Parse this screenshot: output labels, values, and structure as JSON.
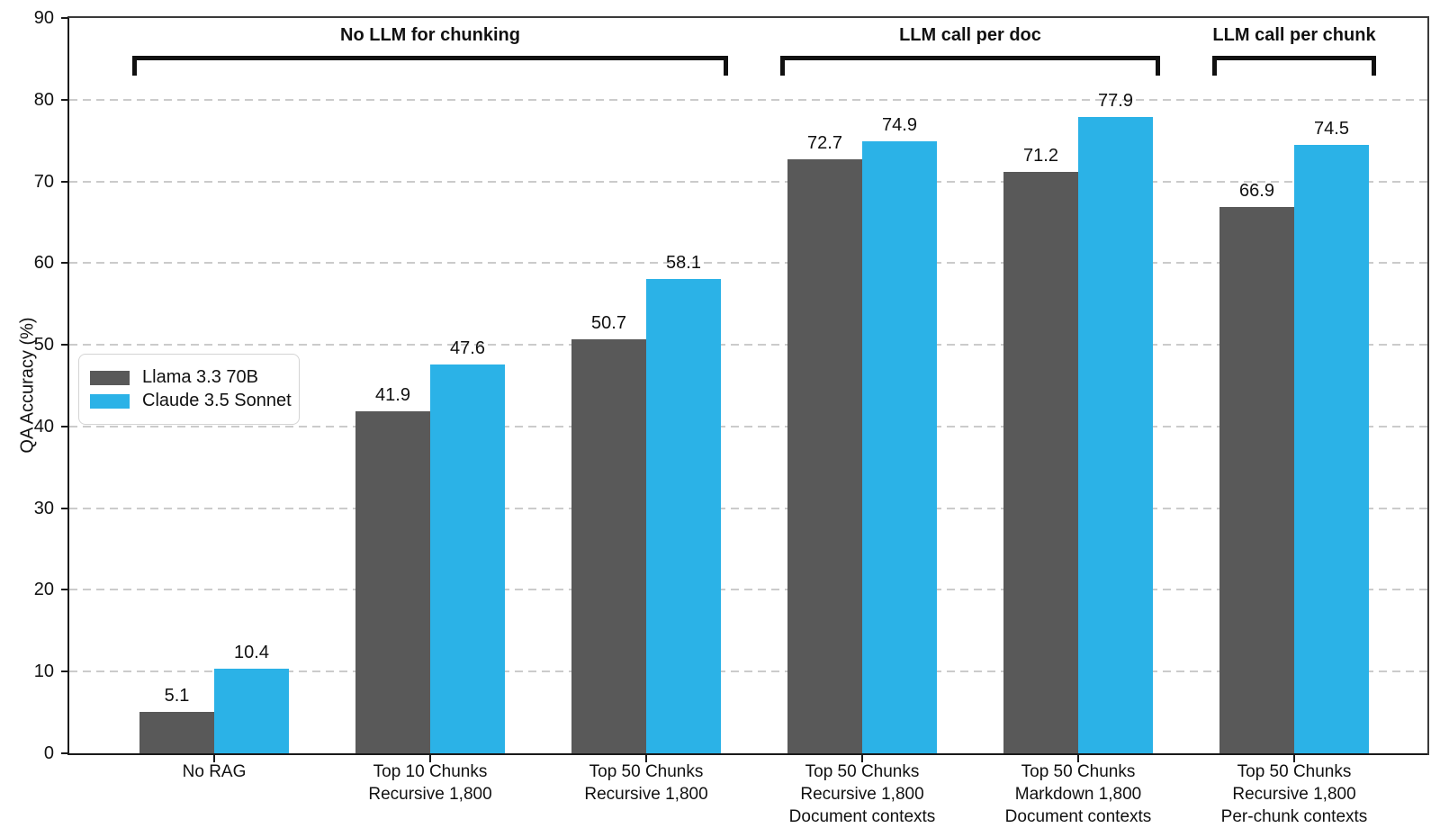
{
  "chart_data": {
    "type": "bar",
    "title": "",
    "xlabel": "",
    "ylabel": "QA Accuracy (%)",
    "ylim": [
      0,
      90
    ],
    "yticks": [
      0,
      10,
      20,
      30,
      40,
      50,
      60,
      70,
      80,
      90
    ],
    "grid": "horizontal dashed",
    "legend_position": "upper left inside plot",
    "categories": [
      [
        "No RAG"
      ],
      [
        "Top 10 Chunks",
        "Recursive 1,800"
      ],
      [
        "Top 50 Chunks",
        "Recursive 1,800"
      ],
      [
        "Top 50 Chunks",
        "Recursive 1,800",
        "Document contexts"
      ],
      [
        "Top 50 Chunks",
        "Markdown 1,800",
        "Document contexts"
      ],
      [
        "Top 50 Chunks",
        "Recursive 1,800",
        "Per-chunk contexts"
      ]
    ],
    "series": [
      {
        "name": "Llama 3.3 70B",
        "color": "#595959",
        "values": [
          5.1,
          41.9,
          50.7,
          72.7,
          71.2,
          66.9
        ]
      },
      {
        "name": "Claude 3.5 Sonnet",
        "color": "#2bb2e7",
        "values": [
          10.4,
          47.6,
          58.1,
          74.9,
          77.9,
          74.5
        ]
      }
    ],
    "bar_value_labels": [
      "5.1",
      "10.4",
      "41.9",
      "47.6",
      "50.7",
      "58.1",
      "72.7",
      "74.9",
      "71.2",
      "77.9",
      "66.9",
      "74.5"
    ],
    "group_brackets": [
      {
        "label": "No LLM for chunking",
        "from_group": 0,
        "to_group": 2
      },
      {
        "label": "LLM call per doc",
        "from_group": 3,
        "to_group": 4
      },
      {
        "label": "LLM call per chunk",
        "from_group": 5,
        "to_group": 5
      }
    ],
    "colors": {
      "grid": "#cbcbcb",
      "axis": "#1a1a1a",
      "text": "#111111",
      "bracket": "#111111"
    }
  }
}
